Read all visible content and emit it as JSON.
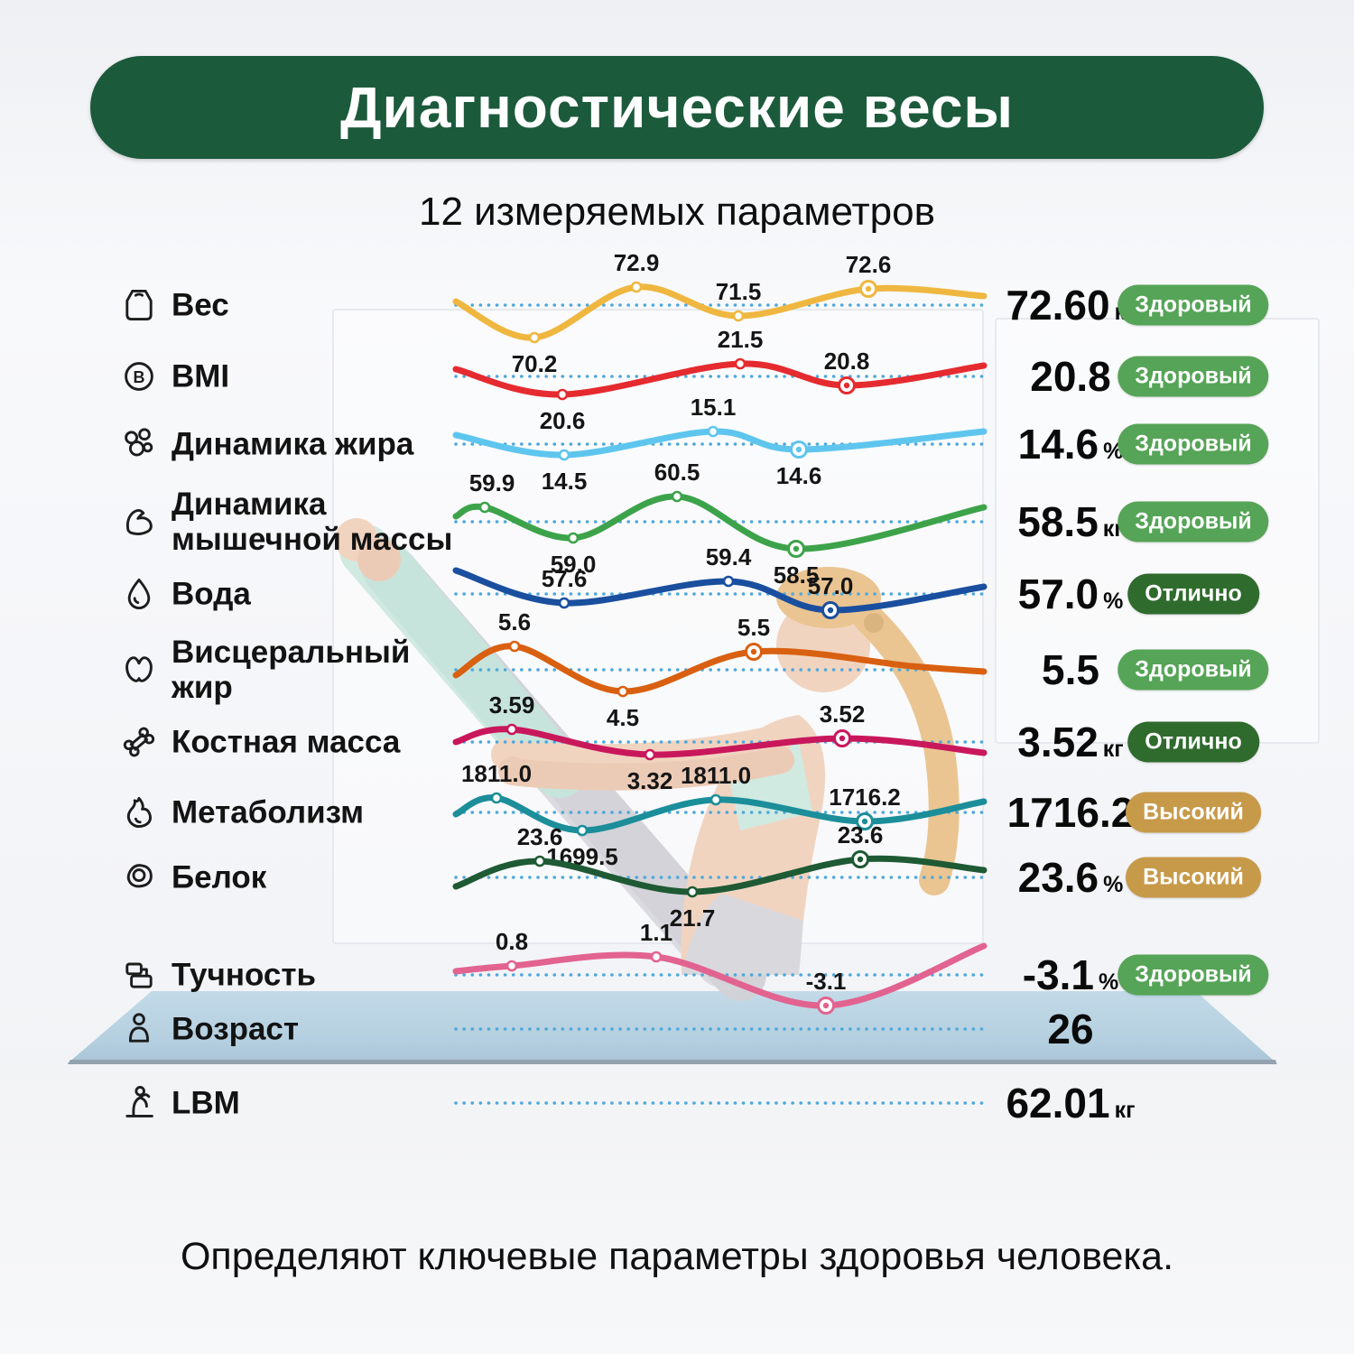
{
  "page": {
    "title": "Диагностические весы",
    "subtitle": "12 измеряемых параметров",
    "footer": "Определяют ключевые параметры здоровья человека."
  },
  "colors": {
    "banner_bg": "#1c5a3c",
    "dotted_line": "#4fa8da",
    "mat": "#b7d1e1"
  },
  "status_colors": {
    "healthy": "#56a457",
    "excellent": "#2f6b2d",
    "high": "#c79a4a"
  },
  "chart_data": [
    {
      "type": "line",
      "name": "Вес",
      "icon": "weight-scale-icon",
      "color": "#efb73f",
      "values": [
        70.2,
        72.9,
        71.5,
        72.6
      ],
      "current": "72.60",
      "unit": "кг",
      "status": "Здоровый",
      "status_type": "healthy",
      "points": [
        [
          0,
          46,
          "",
          ""
        ],
        [
          87,
          86,
          "70.2",
          "below"
        ],
        [
          200,
          30,
          "72.9",
          "above"
        ],
        [
          313,
          62,
          "71.5",
          "above"
        ],
        [
          457,
          32,
          "72.6",
          "above",
          1
        ],
        [
          585,
          40,
          "",
          ""
        ]
      ]
    },
    {
      "type": "line",
      "name": "BMI",
      "icon": "bmi-icon",
      "color": "#e52b2f",
      "values": [
        20.6,
        21.5,
        20.8
      ],
      "current": "20.8",
      "unit": "",
      "status": "Здоровый",
      "status_type": "healthy",
      "points": [
        [
          0,
          42,
          "",
          ""
        ],
        [
          118,
          70,
          "20.6",
          "below"
        ],
        [
          315,
          36,
          "21.5",
          "above"
        ],
        [
          433,
          60,
          "20.8",
          "above",
          1
        ],
        [
          585,
          38,
          "",
          ""
        ]
      ]
    },
    {
      "type": "line",
      "name": "Динамика жира",
      "icon": "fat-cells-icon",
      "color": "#5ec6ee",
      "values": [
        14.5,
        15.1,
        14.6
      ],
      "current": "14.6",
      "unit": "%",
      "status": "Здоровый",
      "status_type": "healthy",
      "points": [
        [
          0,
          40,
          "",
          ""
        ],
        [
          120,
          62,
          "14.5",
          "below"
        ],
        [
          285,
          36,
          "15.1",
          "above"
        ],
        [
          380,
          56,
          "14.6",
          "below",
          1
        ],
        [
          585,
          36,
          "",
          ""
        ]
      ]
    },
    {
      "type": "line",
      "name": "Динамика мышечной массы",
      "icon": "muscle-icon",
      "color": "#3da34a",
      "values": [
        59.9,
        59.0,
        60.5,
        58.5
      ],
      "current": "58.5",
      "unit": "кг",
      "status": "Здоровый",
      "status_type": "healthy",
      "points": [
        [
          0,
          44,
          "",
          ""
        ],
        [
          32,
          34,
          "59.9",
          "above"
        ],
        [
          130,
          68,
          "59.0",
          "below"
        ],
        [
          245,
          22,
          "60.5",
          "above"
        ],
        [
          377,
          80,
          "58.5",
          "below",
          1
        ],
        [
          585,
          34,
          "",
          ""
        ]
      ]
    },
    {
      "type": "line",
      "name": "Вода",
      "icon": "water-drop-icon",
      "color": "#1a4f9f",
      "values": [
        57.6,
        59.4,
        57.0
      ],
      "current": "57.0",
      "unit": "%",
      "status": "Отлично",
      "status_type": "excellent",
      "points": [
        [
          0,
          24,
          "",
          ""
        ],
        [
          120,
          60,
          "57.6",
          "above"
        ],
        [
          302,
          36,
          "59.4",
          "above"
        ],
        [
          415,
          68,
          "57.0",
          "above",
          1
        ],
        [
          585,
          42,
          "",
          ""
        ]
      ]
    },
    {
      "type": "line",
      "name": "Висцеральный жир",
      "icon": "visceral-fat-icon",
      "color": "#d96011",
      "values": [
        5.6,
        4.5,
        5.5
      ],
      "current": "5.5",
      "unit": "",
      "status": "Здоровый",
      "status_type": "healthy",
      "points": [
        [
          0,
          56,
          "",
          ""
        ],
        [
          65,
          24,
          "5.6",
          "above"
        ],
        [
          185,
          74,
          "4.5",
          "below"
        ],
        [
          330,
          30,
          "5.5",
          "above",
          1
        ],
        [
          505,
          46,
          "",
          ""
        ],
        [
          585,
          52,
          "",
          ""
        ]
      ]
    },
    {
      "type": "line",
      "name": "Костная масса",
      "icon": "bone-icon",
      "color": "#c9175c",
      "values": [
        3.59,
        3.32,
        3.52
      ],
      "current": "3.52",
      "unit": "кг",
      "status": "Отлично",
      "status_type": "excellent",
      "points": [
        [
          0,
          50,
          "",
          ""
        ],
        [
          62,
          36,
          "3.59",
          "above"
        ],
        [
          215,
          64,
          "3.32",
          "below"
        ],
        [
          428,
          46,
          "3.52",
          "above",
          1
        ],
        [
          585,
          62,
          "",
          ""
        ]
      ]
    },
    {
      "type": "line",
      "name": "Метаболизм",
      "icon": "flame-icon",
      "color": "#1b8e9a",
      "values": [
        1811.0,
        1699.5,
        1811.0,
        1716.2
      ],
      "current": "1716.2",
      "unit": "",
      "status": "Высокий",
      "status_type": "high",
      "points": [
        [
          0,
          52,
          "",
          ""
        ],
        [
          45,
          34,
          "1811.0",
          "above"
        ],
        [
          140,
          70,
          "1699.5",
          "below"
        ],
        [
          288,
          36,
          "1811.0",
          "above"
        ],
        [
          453,
          60,
          "1716.2",
          "above",
          1
        ],
        [
          585,
          38,
          "",
          ""
        ]
      ]
    },
    {
      "type": "line",
      "name": "Белок",
      "icon": "protein-icon",
      "color": "#1e5a34",
      "values": [
        23.6,
        21.7,
        23.6
      ],
      "current": "23.6",
      "unit": "%",
      "status": "Высокий",
      "status_type": "high",
      "points": [
        [
          0,
          60,
          "",
          ""
        ],
        [
          93,
          32,
          "23.6",
          "above"
        ],
        [
          262,
          66,
          "21.7",
          "below"
        ],
        [
          448,
          30,
          "23.6",
          "above",
          1
        ],
        [
          585,
          42,
          "",
          ""
        ]
      ]
    },
    {
      "type": "line",
      "name": "Тучность",
      "icon": "obesity-scale-icon",
      "color": "#e2638f",
      "values": [
        0.8,
        1.1,
        -3.1
      ],
      "current": "-3.1",
      "unit": "%",
      "status": "Здоровый",
      "status_type": "healthy",
      "points": [
        [
          0,
          46,
          "",
          ""
        ],
        [
          62,
          40,
          "0.8",
          "above"
        ],
        [
          222,
          30,
          "1.1",
          "above"
        ],
        [
          410,
          84,
          "-3.1",
          "above",
          1
        ],
        [
          585,
          18,
          "",
          ""
        ]
      ]
    },
    {
      "type": "line",
      "name": "Возраст",
      "icon": "person-icon",
      "color": "#4fa8da",
      "values": [],
      "current": "26",
      "unit": "",
      "status": "",
      "status_type": "",
      "points": []
    },
    {
      "type": "line",
      "name": "LBM",
      "icon": "lbm-figure-icon",
      "color": "#4fa8da",
      "values": [],
      "current": "62.01",
      "unit": "кг",
      "status": "",
      "status_type": "",
      "points": []
    }
  ]
}
